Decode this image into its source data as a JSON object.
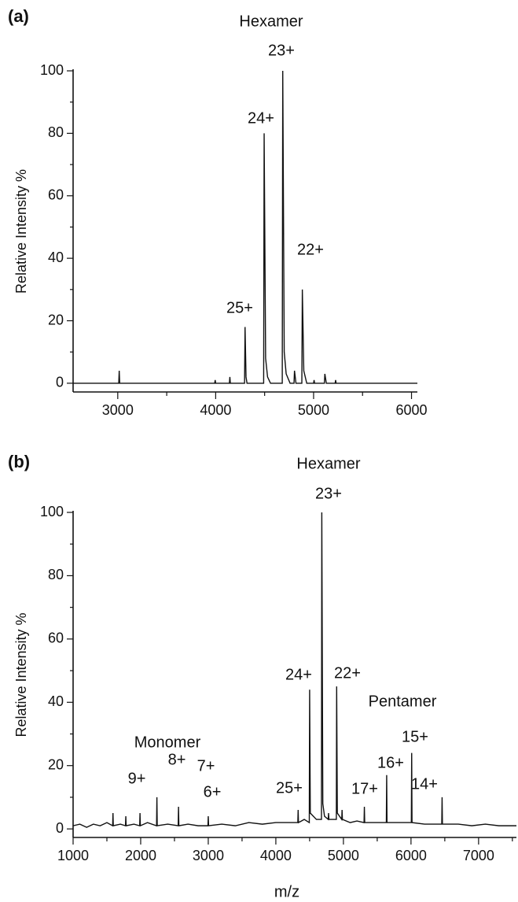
{
  "chart_data": [
    {
      "type": "line",
      "panel_label": "(a)",
      "ylabel": "Relative Intensity %",
      "annotations": [
        "Hexamer",
        "23+",
        "24+",
        "25+",
        "22+"
      ],
      "xlim": [
        2544,
        6060
      ],
      "xticks": [
        3000,
        4000,
        5000,
        6000
      ],
      "xminorticks": [
        3500,
        4500,
        5500
      ],
      "ylim": [
        -2.8,
        100
      ],
      "yticks": [
        0,
        20,
        40,
        60,
        80,
        100
      ],
      "yminorticks": [
        10,
        30,
        50,
        70,
        90
      ],
      "series": [
        {
          "color": "#111111",
          "x": [
            2544,
            3010,
            3015,
            3020,
            3990,
            3995,
            4000,
            4140,
            4145,
            4150,
            4295,
            4300,
            4310,
            4320,
            4490,
            4495,
            4510,
            4530,
            4560,
            4680,
            4685,
            4700,
            4720,
            4760,
            4800,
            4805,
            4820,
            4880,
            4885,
            4900,
            4930,
            5000,
            5005,
            5010,
            5110,
            5115,
            5130,
            5220,
            5225,
            5230,
            6060
          ],
          "values": [
            0,
            0,
            4,
            0,
            0,
            1,
            0,
            0,
            2,
            0,
            0,
            18,
            2,
            0,
            0,
            80,
            8,
            2,
            0,
            0,
            100,
            10,
            3,
            0,
            0,
            4,
            0,
            0,
            30,
            4,
            0,
            0,
            1,
            0,
            0,
            3,
            0,
            0,
            1,
            0,
            0
          ]
        }
      ]
    },
    {
      "type": "line",
      "panel_label": "(b)",
      "ylabel": "Relative Intensity %",
      "xlabel": "m/z",
      "annotations": [
        "Hexamer",
        "23+",
        "24+",
        "22+",
        "25+",
        "Pentamer",
        "15+",
        "16+",
        "17+",
        "14+",
        "Monomer",
        "9+",
        "8+",
        "7+",
        "6+"
      ],
      "xlim": [
        1000,
        7560
      ],
      "xticks": [
        1000,
        2000,
        3000,
        4000,
        5000,
        6000,
        7000
      ],
      "xminorticks": [
        1500,
        2500,
        3500,
        4500,
        5500,
        6500,
        7500
      ],
      "ylim": [
        -2.7,
        100
      ],
      "yticks": [
        0,
        20,
        40,
        60,
        80,
        100
      ],
      "yminorticks": [
        10,
        30,
        50,
        70,
        90
      ],
      "series": [
        {
          "color": "#111111",
          "x": [
            1000,
            1100,
            1200,
            1300,
            1400,
            1500,
            1585,
            1590,
            1595,
            1700,
            1775,
            1780,
            1785,
            1900,
            1985,
            1990,
            1995,
            2100,
            2235,
            2240,
            2245,
            2400,
            2555,
            2560,
            2565,
            2700,
            2850,
            2995,
            3000,
            3005,
            3200,
            3400,
            3600,
            3800,
            4000,
            4200,
            4325,
            4330,
            4335,
            4420,
            4495,
            4500,
            4510,
            4600,
            4675,
            4680,
            4695,
            4720,
            4775,
            4780,
            4785,
            4850,
            4895,
            4900,
            4910,
            4975,
            4980,
            4985,
            5100,
            5200,
            5305,
            5310,
            5315,
            5450,
            5635,
            5640,
            5645,
            5800,
            6005,
            6010,
            6015,
            6200,
            6455,
            6460,
            6465,
            6700,
            6900,
            7100,
            7300,
            7560
          ],
          "values": [
            1,
            1.5,
            0.5,
            1.5,
            1,
            2,
            1,
            5,
            1,
            1.5,
            1,
            4,
            1,
            1.5,
            1,
            5,
            1,
            2,
            1,
            10,
            1,
            1.5,
            1,
            7,
            1,
            1.5,
            1,
            1,
            4,
            1,
            1.5,
            1,
            2,
            1.5,
            2,
            2,
            2,
            6,
            2,
            3,
            2,
            44,
            5,
            3,
            3,
            100,
            8,
            4,
            3,
            5,
            3,
            3,
            3,
            45,
            5,
            3,
            6,
            3,
            2,
            2.5,
            2,
            7,
            2,
            2,
            2,
            17,
            2,
            2,
            2,
            24,
            2,
            1.5,
            1.5,
            10,
            1.5,
            1.5,
            1,
            1.5,
            1,
            1
          ]
        }
      ]
    }
  ]
}
